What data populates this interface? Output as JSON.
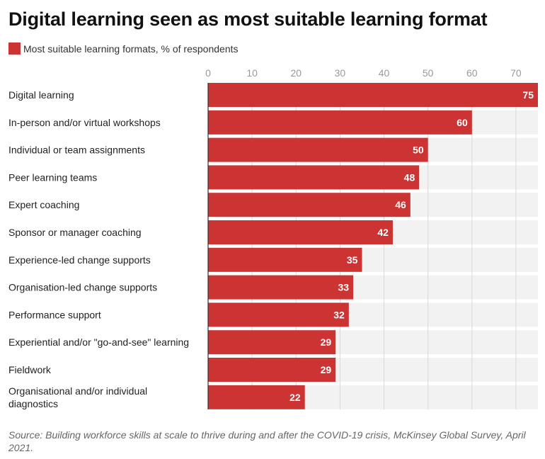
{
  "chart_data": {
    "type": "bar",
    "orientation": "horizontal",
    "title": "Digital learning seen as most suitable learning format",
    "legend": [
      "Most suitable learning formats, % of respondents"
    ],
    "legend_position": "top-left",
    "xlim": [
      0,
      75
    ],
    "ticks": [
      0,
      10,
      20,
      30,
      40,
      50,
      60,
      70
    ],
    "tick_labels": [
      "0",
      "10",
      "20",
      "30",
      "40",
      "50",
      "60",
      "70"
    ],
    "grid": true,
    "categories": [
      "Digital learning",
      "In-person and/or virtual workshops",
      "Individual or team assignments",
      "Peer learning teams",
      "Expert coaching",
      "Sponsor or manager coaching",
      "Experience-led change supports",
      "Organisation-led change supports",
      "Performance support",
      "Experiential and/or \"go-and-see\" learning",
      "Fieldwork",
      "Organisational and/or individual diagnostics"
    ],
    "category_lines": [
      [
        "Digital learning"
      ],
      [
        "In-person and/or virtual workshops"
      ],
      [
        "Individual or team assignments"
      ],
      [
        "Peer learning teams"
      ],
      [
        "Expert coaching"
      ],
      [
        "Sponsor or manager coaching"
      ],
      [
        "Experience-led change supports"
      ],
      [
        "Organisation-led change supports"
      ],
      [
        "Performance support"
      ],
      [
        "Experiential and/or \"go-and-see\" learning"
      ],
      [
        "Fieldwork"
      ],
      [
        "Organisational and/or individual",
        "diagnostics"
      ]
    ],
    "values": [
      75,
      60,
      50,
      48,
      46,
      42,
      35,
      33,
      32,
      29,
      29,
      22
    ],
    "value_labels": [
      "75",
      "60",
      "50",
      "48",
      "46",
      "42",
      "35",
      "33",
      "32",
      "29",
      "29",
      "22"
    ],
    "source": "Source: Building workforce skills at scale to thrive during and after the COVID-19 crisis, McKinsey Global Survey, April 2021."
  },
  "colors": {
    "bar": "#cc3333",
    "track": "#f2f2f2",
    "grid": "#d9d9d9",
    "axis": "#333333",
    "tick_text": "#999999",
    "label_text": "#222222",
    "value_text": "#ffffff"
  }
}
